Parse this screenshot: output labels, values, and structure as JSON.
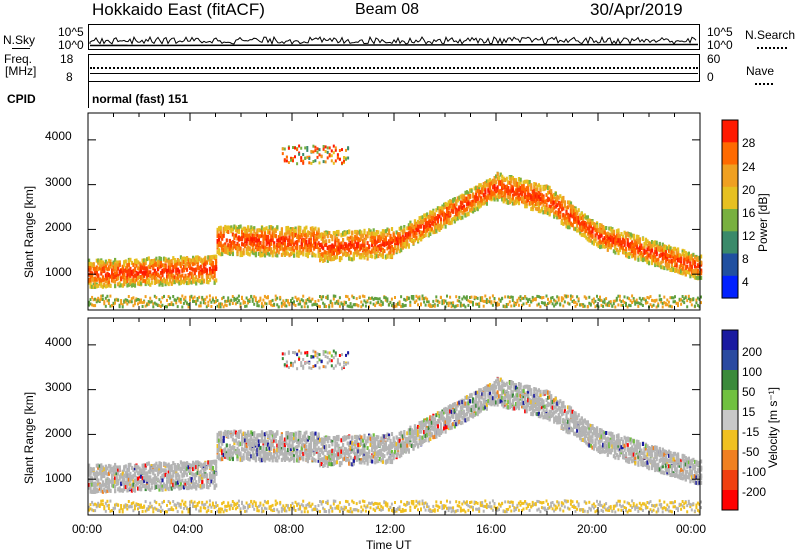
{
  "header": {
    "station": "Hokkaido East (fitACF)",
    "beam": "Beam 08",
    "date": "30/Apr/2019"
  },
  "top_panel": {
    "left_label": "N.Sky",
    "right_label": "N.Search",
    "left_ticks": [
      "10^5",
      "10^0"
    ],
    "right_ticks": [
      "10^5",
      "10^0"
    ]
  },
  "freq_panel": {
    "left_label_1": "Freq.",
    "left_label_2": "[MHz]",
    "left_ticks": [
      "18",
      "8"
    ],
    "right_label": "Nave",
    "right_ticks": [
      "60",
      "0"
    ]
  },
  "cpid": {
    "label": "CPID",
    "value": "normal (fast) 151"
  },
  "chart_data": [
    {
      "type": "heatmap",
      "title": "",
      "ylabel": "Slant Range [km]",
      "xlabel": "",
      "ylim": [
        200,
        4600
      ],
      "yticks": [
        "1000",
        "2000",
        "3000",
        "4000"
      ],
      "colorbar_label": "Power [dB]",
      "colorbar_ticks": [
        "28",
        "24",
        "20",
        "16",
        "12",
        "8",
        "4"
      ],
      "colorbar_colors": [
        "#ff1a00",
        "#ff6a00",
        "#f0a020",
        "#e6c020",
        "#78b040",
        "#3a8a6a",
        "#2050a0",
        "#0020ff"
      ]
    },
    {
      "type": "heatmap",
      "title": "",
      "ylabel": "Slant Range [km]",
      "xlabel": "Time UT",
      "ylim": [
        200,
        4600
      ],
      "yticks": [
        "1000",
        "2000",
        "3000",
        "4000"
      ],
      "xticks": [
        "00:00",
        "04:00",
        "08:00",
        "12:00",
        "16:00",
        "20:00",
        "00:00"
      ],
      "colorbar_label": "Velocity [m s⁻¹]",
      "colorbar_ticks": [
        "200",
        "100",
        "50",
        "15",
        "-15",
        "-50",
        "-100",
        "-200"
      ],
      "colorbar_colors": [
        "#1a1aa0",
        "#2a4aa0",
        "#3a8a3a",
        "#70c040",
        "#c8c8c8",
        "#f0c020",
        "#f08020",
        "#f04010",
        "#ff0000"
      ]
    }
  ],
  "colors": {
    "ground_scatter": "#b4b4b4",
    "power_high": "#ff2000",
    "power_mid": "#ff8000",
    "power_low": "#60a040"
  }
}
